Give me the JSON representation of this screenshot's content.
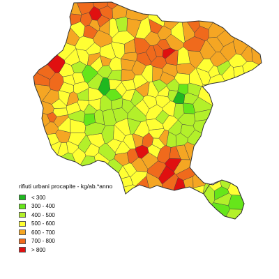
{
  "legend": {
    "title": "rifiuti urbani procapite - kg/ab.*anno",
    "classes": [
      {
        "label": "< 300",
        "color": "#1fb81f"
      },
      {
        "label": "300 - 400",
        "color": "#66e61a"
      },
      {
        "label": "400 - 500",
        "color": "#b3f02a"
      },
      {
        "label": "500 - 600",
        "color": "#ffff33"
      },
      {
        "label": "600 - 700",
        "color": "#f5a623"
      },
      {
        "label": "700 - 800",
        "color": "#f06a1c"
      },
      {
        "label": "> 800",
        "color": "#e01010"
      }
    ]
  },
  "colors": {
    "border": "#404040",
    "background": "#ffffff"
  }
}
